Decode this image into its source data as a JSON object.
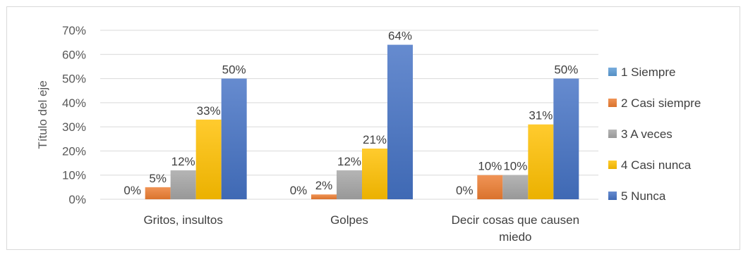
{
  "chart_data": {
    "type": "bar",
    "title": "",
    "xlabel": "",
    "ylabel": "Título del eje",
    "ylim": [
      0,
      70
    ],
    "yticks": [
      "0%",
      "10%",
      "20%",
      "30%",
      "40%",
      "50%",
      "60%",
      "70%"
    ],
    "grid": true,
    "legend_position": "right",
    "categories": [
      [
        "Gritos, insultos"
      ],
      [
        "Golpes"
      ],
      [
        "Decir cosas que causen",
        "miedo"
      ]
    ],
    "series": [
      {
        "name": "1 Siempre",
        "color": "#5B9BD5",
        "values": [
          0,
          0,
          0
        ],
        "labels": [
          "0%",
          "0%",
          "0%"
        ]
      },
      {
        "name": "2 Casi siempre",
        "color": "#ED7D31",
        "values": [
          5,
          2,
          10
        ],
        "labels": [
          "5%",
          "2%",
          "10%"
        ]
      },
      {
        "name": "3 A veces",
        "color": "#A5A5A5",
        "values": [
          12,
          12,
          10
        ],
        "labels": [
          "12%",
          "12%",
          "10%"
        ]
      },
      {
        "name": "4 Casi nunca",
        "color": "#FFC000",
        "values": [
          33,
          21,
          31
        ],
        "labels": [
          "33%",
          "21%",
          "31%"
        ]
      },
      {
        "name": "5 Nunca",
        "color": "#4472C4",
        "values": [
          50,
          64,
          50
        ],
        "labels": [
          "50%",
          "64%",
          "50%"
        ]
      }
    ]
  }
}
